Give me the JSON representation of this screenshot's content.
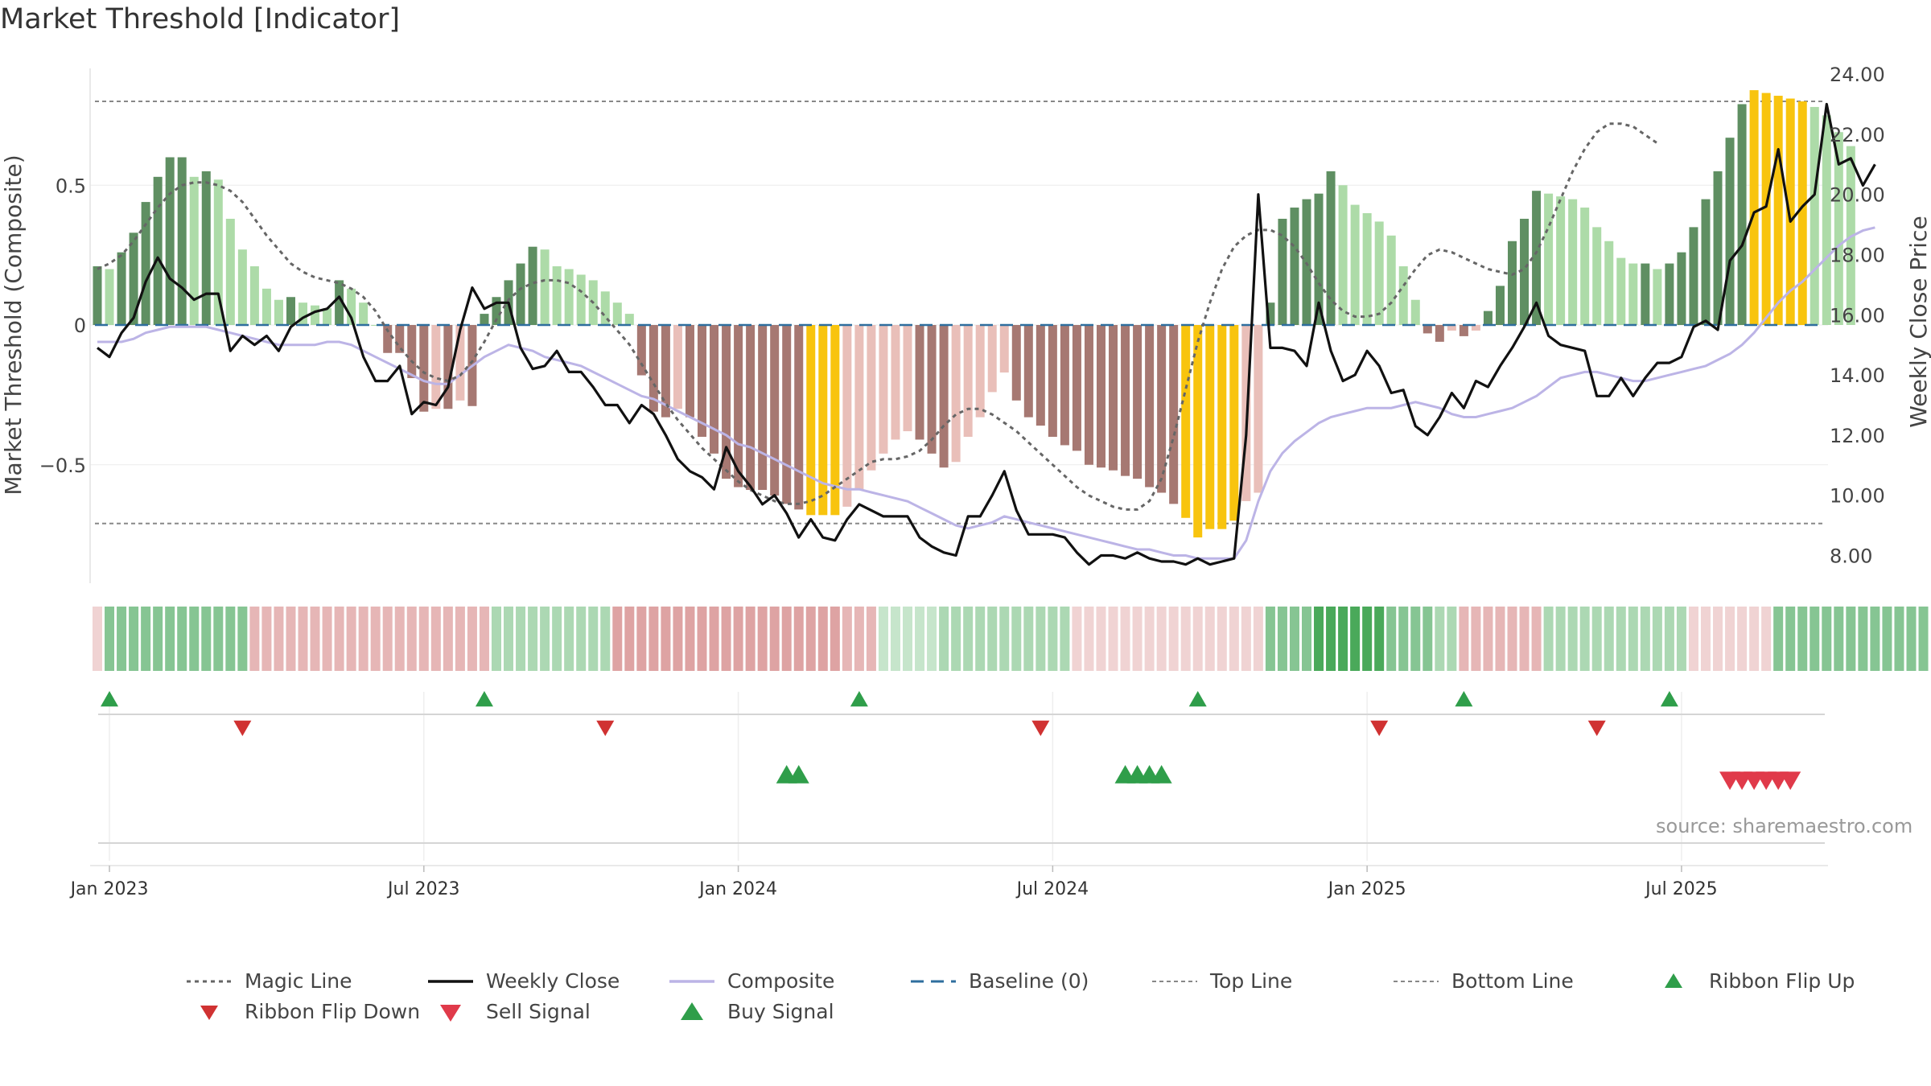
{
  "title": "Market Threshold [Indicator]",
  "source": "source: sharemaestro.com",
  "chart_data": {
    "type": "bar",
    "left_axis": {
      "label": "Market Threshold (Composite)",
      "ticks": [
        0.5,
        0,
        -0.5
      ],
      "tick_labels": [
        "0.5",
        "0",
        "−0.5"
      ],
      "range": [
        -0.93,
        0.93
      ]
    },
    "right_axis": {
      "label": "Weekly Close Price",
      "ticks": [
        8,
        10,
        12,
        14,
        16,
        18,
        20,
        22,
        24
      ],
      "tick_labels": [
        "8.00",
        "10.00",
        "12.00",
        "14.00",
        "16.00",
        "18.00",
        "20.00",
        "22.00",
        "24.00"
      ],
      "range": [
        7.0,
        24.5
      ]
    },
    "x_axis": {
      "tick_labels": [
        "Jan 2023",
        "Jul 2023",
        "Jan 2024",
        "Jul 2024",
        "Jan 2025",
        "Jul 2025"
      ],
      "tick_weeks": [
        1,
        27,
        53,
        79,
        105,
        131
      ],
      "weeks": 144
    },
    "reference_lines": {
      "top_line": 0.8,
      "bottom_line": -0.71,
      "baseline": 0
    },
    "composite_histogram": [
      0.21,
      0.2,
      0.26,
      0.33,
      0.44,
      0.53,
      0.6,
      0.6,
      0.53,
      0.55,
      0.52,
      0.38,
      0.27,
      0.21,
      0.13,
      0.09,
      0.1,
      0.08,
      0.07,
      0.06,
      0.16,
      0.13,
      0.08,
      0.0,
      -0.1,
      -0.1,
      -0.19,
      -0.31,
      -0.3,
      -0.3,
      -0.27,
      -0.29,
      0.04,
      0.1,
      0.16,
      0.22,
      0.28,
      0.27,
      0.21,
      0.2,
      0.18,
      0.16,
      0.12,
      0.08,
      0.04,
      -0.18,
      -0.31,
      -0.33,
      -0.3,
      -0.33,
      -0.4,
      -0.46,
      -0.55,
      -0.58,
      -0.59,
      -0.59,
      -0.61,
      -0.64,
      -0.66,
      -0.68,
      -0.68,
      -0.68,
      -0.65,
      -0.59,
      -0.52,
      -0.46,
      -0.41,
      -0.38,
      -0.41,
      -0.46,
      -0.51,
      -0.49,
      -0.4,
      -0.33,
      -0.24,
      -0.17,
      -0.27,
      -0.33,
      -0.36,
      -0.4,
      -0.43,
      -0.45,
      -0.5,
      -0.51,
      -0.52,
      -0.54,
      -0.55,
      -0.58,
      -0.6,
      -0.64,
      -0.69,
      -0.76,
      -0.73,
      -0.73,
      -0.7,
      -0.63,
      -0.6,
      0.08,
      0.38,
      0.42,
      0.45,
      0.47,
      0.55,
      0.5,
      0.43,
      0.4,
      0.37,
      0.32,
      0.21,
      0.09,
      -0.03,
      -0.06,
      -0.02,
      -0.04,
      -0.02,
      0.05,
      0.14,
      0.3,
      0.38,
      0.48,
      0.47,
      0.46,
      0.45,
      0.42,
      0.35,
      0.3,
      0.24,
      0.22,
      0.22,
      0.2,
      0.22,
      0.26,
      0.35,
      0.45,
      0.55,
      0.67,
      0.79,
      0.84,
      0.83,
      0.82,
      0.81,
      0.8,
      0.78,
      0.75,
      0.69,
      0.64
    ],
    "weekly_close": [
      14.9,
      14.6,
      15.4,
      15.9,
      17.1,
      17.9,
      17.2,
      16.9,
      16.5,
      16.7,
      16.7,
      14.8,
      15.3,
      15.0,
      15.3,
      14.8,
      15.6,
      15.9,
      16.1,
      16.2,
      16.6,
      15.9,
      14.6,
      13.8,
      13.8,
      14.3,
      12.7,
      13.1,
      13.0,
      13.6,
      15.5,
      16.9,
      16.2,
      16.4,
      16.4,
      14.9,
      14.2,
      14.3,
      14.8,
      14.1,
      14.1,
      13.6,
      13.0,
      13.0,
      12.4,
      13.0,
      12.7,
      12.0,
      11.2,
      10.8,
      10.6,
      10.2,
      11.6,
      10.8,
      10.3,
      9.7,
      10.0,
      9.4,
      8.6,
      9.2,
      8.6,
      8.5,
      9.2,
      9.7,
      9.5,
      9.3,
      9.3,
      9.3,
      8.6,
      8.3,
      8.1,
      8.0,
      9.3,
      9.3,
      10.0,
      10.8,
      9.5,
      8.7,
      8.7,
      8.7,
      8.6,
      8.1,
      7.7,
      8.0,
      8.0,
      7.9,
      8.1,
      7.9,
      7.8,
      7.8,
      7.7,
      7.9,
      7.7,
      7.8,
      7.9,
      12.0,
      20.0,
      14.9,
      14.9,
      14.8,
      14.3,
      16.4,
      14.8,
      13.8,
      14.0,
      14.8,
      14.3,
      13.4,
      13.5,
      12.3,
      12.0,
      12.6,
      13.4,
      12.9,
      13.8,
      13.6,
      14.3,
      14.9,
      15.6,
      16.4,
      15.3,
      15.0,
      14.9,
      14.8,
      13.3,
      13.3,
      13.9,
      13.3,
      13.9,
      14.4,
      14.4,
      14.6,
      15.6,
      15.8,
      15.5,
      17.8,
      18.3,
      19.4,
      19.6,
      21.5,
      19.1,
      19.6,
      20.0,
      23.0,
      21.0,
      21.2,
      20.3,
      21.0
    ],
    "composite_line": [
      15.1,
      15.1,
      15.1,
      15.2,
      15.4,
      15.5,
      15.6,
      15.6,
      15.6,
      15.6,
      15.5,
      15.4,
      15.3,
      15.2,
      15.1,
      15.0,
      15.0,
      15.0,
      15.0,
      15.1,
      15.1,
      15.0,
      14.8,
      14.6,
      14.4,
      14.2,
      14.0,
      13.8,
      13.7,
      13.7,
      14.0,
      14.3,
      14.6,
      14.8,
      15.0,
      14.9,
      14.8,
      14.6,
      14.5,
      14.4,
      14.3,
      14.1,
      13.9,
      13.7,
      13.5,
      13.3,
      13.2,
      13.0,
      12.8,
      12.6,
      12.4,
      12.2,
      12.0,
      11.7,
      11.6,
      11.4,
      11.2,
      11.0,
      10.8,
      10.6,
      10.4,
      10.3,
      10.2,
      10.2,
      10.1,
      10.0,
      9.9,
      9.8,
      9.6,
      9.4,
      9.2,
      9.0,
      8.9,
      9.0,
      9.1,
      9.3,
      9.2,
      9.1,
      9.0,
      8.9,
      8.8,
      8.7,
      8.6,
      8.5,
      8.4,
      8.3,
      8.2,
      8.2,
      8.1,
      8.0,
      8.0,
      7.9,
      7.9,
      7.9,
      7.9,
      8.5,
      9.8,
      10.8,
      11.4,
      11.8,
      12.1,
      12.4,
      12.6,
      12.7,
      12.8,
      12.9,
      12.9,
      12.9,
      13.0,
      13.1,
      13.0,
      12.9,
      12.7,
      12.6,
      12.6,
      12.7,
      12.8,
      12.9,
      13.1,
      13.3,
      13.6,
      13.9,
      14.0,
      14.1,
      14.1,
      14.0,
      13.9,
      13.8,
      13.8,
      13.9,
      14.0,
      14.1,
      14.2,
      14.3,
      14.5,
      14.7,
      15.0,
      15.4,
      15.9,
      16.4,
      16.8,
      17.1,
      17.5,
      17.9,
      18.3,
      18.6,
      18.8,
      18.9
    ],
    "magic_line": [
      0.2,
      0.22,
      0.25,
      0.3,
      0.36,
      0.42,
      0.47,
      0.5,
      0.51,
      0.51,
      0.5,
      0.48,
      0.44,
      0.38,
      0.32,
      0.27,
      0.22,
      0.19,
      0.17,
      0.16,
      0.15,
      0.13,
      0.1,
      0.05,
      -0.02,
      -0.08,
      -0.13,
      -0.17,
      -0.19,
      -0.2,
      -0.18,
      -0.13,
      -0.06,
      0.02,
      0.09,
      0.13,
      0.15,
      0.16,
      0.16,
      0.15,
      0.12,
      0.08,
      0.03,
      -0.02,
      -0.07,
      -0.14,
      -0.21,
      -0.28,
      -0.34,
      -0.39,
      -0.44,
      -0.48,
      -0.52,
      -0.56,
      -0.59,
      -0.61,
      -0.63,
      -0.64,
      -0.64,
      -0.63,
      -0.61,
      -0.58,
      -0.55,
      -0.52,
      -0.49,
      -0.48,
      -0.48,
      -0.47,
      -0.45,
      -0.41,
      -0.36,
      -0.32,
      -0.3,
      -0.3,
      -0.32,
      -0.35,
      -0.38,
      -0.42,
      -0.46,
      -0.5,
      -0.54,
      -0.58,
      -0.61,
      -0.63,
      -0.65,
      -0.66,
      -0.66,
      -0.63,
      -0.55,
      -0.4,
      -0.23,
      -0.06,
      0.08,
      0.2,
      0.28,
      0.32,
      0.34,
      0.34,
      0.32,
      0.28,
      0.22,
      0.15,
      0.09,
      0.05,
      0.03,
      0.03,
      0.04,
      0.08,
      0.14,
      0.2,
      0.25,
      0.27,
      0.26,
      0.24,
      0.22,
      0.2,
      0.19,
      0.18,
      0.2,
      0.26,
      0.35,
      0.45,
      0.55,
      0.63,
      0.69,
      0.72,
      0.72,
      0.71,
      0.68,
      0.65
    ],
    "ribbon": [
      "pale_red",
      "green_mid",
      "green_mid",
      "green_mid",
      "green_mid",
      "green_mid",
      "green_mid",
      "green_mid",
      "green_mid",
      "green_mid",
      "green_mid",
      "green_mid",
      "green_mid",
      "red_light",
      "red_light",
      "red_light",
      "red_light",
      "red_light",
      "red_light",
      "red_light",
      "red_light",
      "red_light",
      "red_light",
      "red_light",
      "red_light",
      "red_light",
      "red_light",
      "red_light",
      "red_light",
      "red_light",
      "red_light",
      "red_light",
      "red_light",
      "green_light",
      "green_light",
      "green_light",
      "green_light",
      "green_light",
      "green_light",
      "green_light",
      "green_light",
      "green_light",
      "green_light",
      "red_mid",
      "red_mid",
      "red_mid",
      "red_mid",
      "red_mid",
      "red_mid",
      "red_mid",
      "red_mid",
      "red_mid",
      "red_mid",
      "red_mid",
      "red_mid",
      "red_mid",
      "red_mid",
      "red_mid",
      "red_mid",
      "red_mid",
      "red_mid",
      "red_mid",
      "red_light",
      "red_light",
      "red_light",
      "green_pale",
      "green_pale",
      "green_pale",
      "green_pale",
      "green_pale",
      "green_light",
      "green_light",
      "green_light",
      "green_light",
      "green_light",
      "green_light",
      "green_light",
      "green_light",
      "green_light",
      "green_light",
      "green_light",
      "pale_red",
      "pale_red",
      "pale_red",
      "pale_red",
      "pale_red",
      "pale_red",
      "pale_red",
      "pale_red",
      "pale_red",
      "pale_red",
      "pale_red",
      "pale_red",
      "pale_red",
      "pale_red",
      "pale_red",
      "pale_red",
      "green_mid",
      "green_mid",
      "green_mid",
      "green_mid",
      "green_dark",
      "green_dark",
      "green_dark",
      "green_dark",
      "green_dark",
      "green_dark",
      "green_mid",
      "green_mid",
      "green_mid",
      "green_mid",
      "green_light",
      "green_light",
      "red_light",
      "red_light",
      "red_light",
      "red_light",
      "red_light",
      "red_light",
      "red_light",
      "green_light",
      "green_light",
      "green_light",
      "green_light",
      "green_light",
      "green_light",
      "green_light",
      "green_light",
      "green_light",
      "green_light",
      "green_light",
      "green_light",
      "pale_red",
      "pale_red",
      "pale_red",
      "pale_red",
      "pale_red",
      "pale_red",
      "pale_red",
      "green_mid",
      "green_mid",
      "green_mid",
      "green_mid",
      "green_mid",
      "green_mid",
      "green_mid",
      "green_mid",
      "green_mid",
      "green_mid",
      "green_mid",
      "green_mid",
      "green_mid"
    ],
    "ribbon_flip_up_weeks": [
      1,
      32,
      63,
      91,
      113,
      130
    ],
    "ribbon_flip_down_weeks": [
      12,
      42,
      78,
      106,
      124
    ],
    "buy_signal_weeks": [
      57,
      58,
      85,
      86,
      87,
      88
    ],
    "sell_signal_weeks": [
      135,
      136,
      137,
      138,
      139,
      140
    ],
    "colors": {
      "hist_dark_green": "#5f8f62",
      "hist_light_green": "#addba8",
      "hist_dark_red": "#a67872",
      "hist_light_red": "#e9bfb9",
      "hist_extreme": "#f8c40e",
      "weekly_close": "#111111",
      "composite": "#bcb4e6",
      "magic": "#666666",
      "baseline": "#2e6e9e",
      "ribbon_flip_up": "#2f9e4a",
      "ribbon_flip_down": "#d03232",
      "sell_signal": "#e03a4a",
      "buy_signal": "#2f9e4a"
    }
  },
  "legend": [
    {
      "key": "magic",
      "label": "Magic Line"
    },
    {
      "key": "close",
      "label": "Weekly Close"
    },
    {
      "key": "composite",
      "label": "Composite"
    },
    {
      "key": "baseline",
      "label": "Baseline (0)"
    },
    {
      "key": "top",
      "label": "Top Line"
    },
    {
      "key": "bottom",
      "label": "Bottom Line"
    },
    {
      "key": "flipup",
      "label": "Ribbon Flip Up"
    },
    {
      "key": "flipdown",
      "label": "Ribbon Flip Down"
    },
    {
      "key": "sell",
      "label": "Sell Signal"
    },
    {
      "key": "buy",
      "label": "Buy Signal"
    }
  ]
}
